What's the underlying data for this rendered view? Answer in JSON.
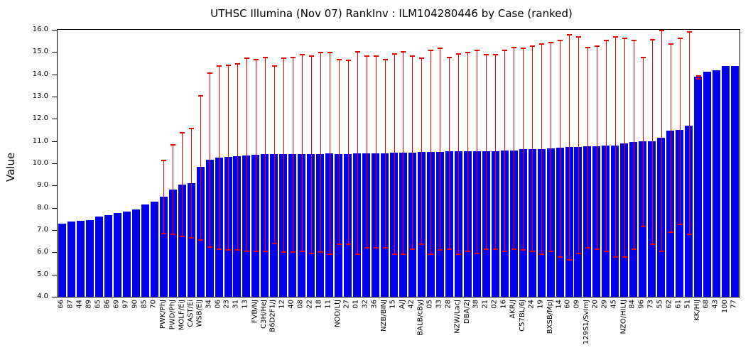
{
  "title": "UTHSC Illumina (Nov 07) RankInv : ILM104280446 by Case (ranked)",
  "colors": {
    "bar": "#0000EB",
    "error": "#EE0000",
    "axis": "#000000",
    "background": "#FFFFFF",
    "text": "#000000"
  },
  "chart_data": {
    "type": "bar",
    "title": "UTHSC Illumina (Nov 07) RankInv : ILM104280446 by Case (ranked)",
    "xlabel": "",
    "ylabel": "Value",
    "ylim": [
      4.0,
      16.0
    ],
    "y_ticks": [
      "4.0",
      "5.0",
      "6.0",
      "7.0",
      "8.0",
      "9.0",
      "10.0",
      "11.0",
      "12.0",
      "13.0",
      "14.0",
      "15.0",
      "16.0"
    ],
    "grid": false,
    "legend": "none",
    "categories": [
      "66",
      "87",
      "44",
      "89",
      "65",
      "86",
      "69",
      "97",
      "90",
      "85",
      "70",
      "PWK/PhJ",
      "PWD/PhJ",
      "MOLF/EiJ",
      "CAST/Ei",
      "WSB/EiJ",
      "34",
      "06",
      "23",
      "31",
      "13",
      "FVB/NJ",
      "C3H/HeJ",
      "B6D2F1/J",
      "12",
      "40",
      "08",
      "22",
      "18",
      "11",
      "NOD/LtJ",
      "27",
      "01",
      "32",
      "36",
      "NZB/BINJ",
      "15",
      "A/J",
      "42",
      "BALB/cByJ",
      "05",
      "33",
      "28",
      "NZW/LacJ",
      "DBA/2J",
      "38",
      "21",
      "02",
      "16",
      "AKR/J",
      "C57BL/6J",
      "24",
      "19",
      "BXSB/MpJ",
      "14",
      "60",
      "09",
      "129S1/SvImJ",
      "20",
      "29",
      "45",
      "NZO/HILtJ",
      "84",
      "96",
      "73",
      "55",
      "62",
      "61",
      "51",
      "KK/HIJ",
      "68",
      "43",
      "100",
      "77"
    ],
    "values": [
      7.3,
      7.38,
      7.41,
      7.44,
      7.6,
      7.67,
      7.75,
      7.83,
      7.91,
      8.15,
      8.28,
      8.5,
      8.82,
      9.05,
      9.1,
      9.85,
      10.16,
      10.25,
      10.28,
      10.31,
      10.35,
      10.37,
      10.4,
      10.4,
      10.41,
      10.42,
      10.42,
      10.43,
      10.43,
      10.44,
      10.42,
      10.43,
      10.45,
      10.45,
      10.46,
      10.46,
      10.48,
      10.48,
      10.49,
      10.52,
      10.52,
      10.52,
      10.53,
      10.53,
      10.54,
      10.55,
      10.55,
      10.55,
      10.56,
      10.57,
      10.63,
      10.65,
      10.65,
      10.68,
      10.7,
      10.73,
      10.74,
      10.76,
      10.77,
      10.79,
      10.81,
      10.89,
      10.96,
      11.0,
      11.0,
      11.16,
      11.47,
      11.49,
      11.7,
      13.88,
      14.12,
      14.19,
      14.36,
      14.36
    ],
    "error_low": [
      null,
      null,
      null,
      null,
      null,
      null,
      null,
      null,
      null,
      null,
      null,
      6.85,
      6.8,
      6.7,
      6.65,
      6.55,
      6.25,
      6.15,
      6.1,
      6.1,
      6.05,
      6.05,
      6.05,
      6.4,
      6.0,
      6.0,
      6.05,
      5.95,
      6.0,
      5.9,
      6.35,
      6.35,
      5.9,
      6.2,
      6.2,
      6.2,
      5.9,
      5.9,
      6.15,
      6.35,
      5.9,
      6.1,
      6.15,
      5.9,
      6.05,
      5.95,
      6.15,
      6.15,
      6.05,
      6.15,
      6.1,
      6.05,
      5.9,
      6.05,
      5.8,
      5.65,
      5.95,
      6.2,
      6.15,
      6.05,
      5.8,
      5.8,
      6.15,
      7.15,
      6.35,
      6.05,
      6.9,
      7.25,
      6.8,
      13.8,
      null,
      null,
      null,
      null
    ],
    "error_high": [
      null,
      null,
      null,
      null,
      null,
      null,
      null,
      null,
      null,
      null,
      null,
      10.15,
      10.85,
      11.4,
      11.6,
      13.05,
      14.1,
      14.4,
      14.45,
      14.5,
      14.75,
      14.7,
      14.8,
      14.4,
      14.75,
      14.8,
      14.9,
      14.85,
      15.0,
      15.0,
      14.7,
      14.65,
      15.05,
      14.85,
      14.85,
      14.7,
      14.95,
      15.05,
      14.85,
      14.75,
      15.1,
      15.2,
      14.8,
      14.95,
      15.0,
      15.1,
      14.9,
      14.9,
      15.1,
      15.25,
      15.2,
      15.3,
      15.4,
      15.45,
      15.55,
      15.8,
      15.7,
      15.25,
      15.3,
      15.55,
      15.7,
      15.65,
      15.55,
      14.8,
      15.6,
      16.0,
      15.4,
      15.65,
      15.95,
      13.97,
      null,
      null,
      null,
      null
    ]
  }
}
